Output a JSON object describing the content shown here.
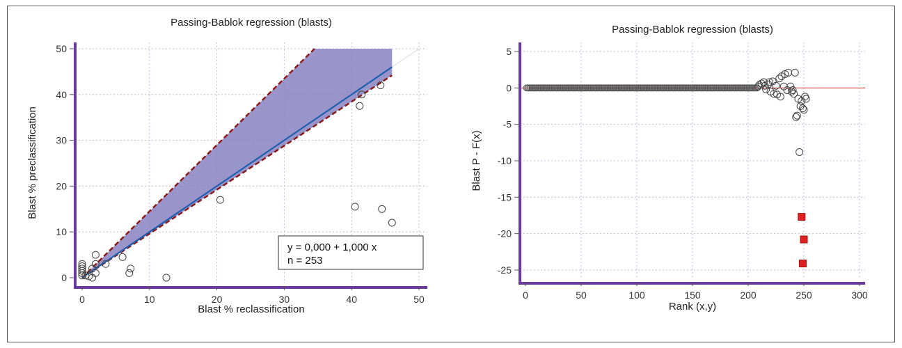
{
  "chart_data": [
    {
      "type": "scatter",
      "title": "Passing-Bablok regression (blasts)",
      "xlabel": "Blast % reclassification",
      "ylabel": "Blast % preclassification",
      "xlim": [
        0,
        50
      ],
      "ylim": [
        0,
        50
      ],
      "xticks": [
        "0",
        "10",
        "20",
        "30",
        "40",
        "50"
      ],
      "yticks": [
        "0",
        "10",
        "20",
        "30",
        "40",
        "50"
      ],
      "grid": true,
      "regression": {
        "intercept": 0.0,
        "slope": 1.0,
        "x_range": [
          0,
          46
        ]
      },
      "confidence_band": {
        "upper": [
          [
            0,
            0
          ],
          [
            34.5,
            50
          ],
          [
            46,
            50
          ]
        ],
        "lower": [
          [
            0,
            0
          ],
          [
            46,
            44.2
          ]
        ]
      },
      "identity_line": true,
      "points": [
        [
          0,
          0.5
        ],
        [
          0,
          1
        ],
        [
          0,
          1.5
        ],
        [
          0,
          2
        ],
        [
          0,
          2.5
        ],
        [
          0,
          3
        ],
        [
          0.5,
          0.5
        ],
        [
          1,
          0.3
        ],
        [
          1.5,
          0
        ],
        [
          2,
          5
        ],
        [
          2,
          3
        ],
        [
          2,
          1
        ],
        [
          1.5,
          2
        ],
        [
          3.5,
          3
        ],
        [
          6,
          4.5
        ],
        [
          7,
          1
        ],
        [
          7.2,
          2
        ],
        [
          12.5,
          0
        ],
        [
          20.5,
          17
        ],
        [
          40.5,
          15.5
        ],
        [
          41.2,
          37.5
        ],
        [
          41.5,
          40
        ],
        [
          44.5,
          15
        ],
        [
          44.3,
          42
        ],
        [
          46,
          12
        ]
      ],
      "legend_box": {
        "equation": "y = 0,000  +  1,000  x",
        "n": "n = 253",
        "placement": "bottom-right"
      }
    },
    {
      "type": "scatter",
      "title": "Passing-Bablok regression (blasts)",
      "xlabel": "Rank  (x,y)",
      "ylabel": "Blast P - F(x)",
      "xlim": [
        0,
        300
      ],
      "ylim": [
        -25,
        5
      ],
      "xticks": [
        "0",
        "50",
        "100",
        "150",
        "200",
        "250",
        "300"
      ],
      "yticks": [
        "5",
        "0",
        "-5",
        "-10",
        "-15",
        "-20",
        "-25"
      ],
      "grid": true,
      "reference_line": 0,
      "zero_run": {
        "from_rank": 1,
        "to_rank": 208,
        "value": 0
      },
      "points": [
        [
          209,
          0.2
        ],
        [
          210,
          0.4
        ],
        [
          212,
          0.6
        ],
        [
          214,
          0.8
        ],
        [
          215,
          0.3
        ],
        [
          216,
          -0.2
        ],
        [
          218,
          0.5
        ],
        [
          219,
          0.8
        ],
        [
          220,
          -0.5
        ],
        [
          222,
          0.9
        ],
        [
          223,
          -0.8
        ],
        [
          225,
          0.3
        ],
        [
          226,
          -0.9
        ],
        [
          228,
          1.3
        ],
        [
          229,
          -1.2
        ],
        [
          230,
          1.6
        ],
        [
          232,
          0.2
        ],
        [
          233,
          1.9
        ],
        [
          235,
          -0.3
        ],
        [
          236,
          2.1
        ],
        [
          238,
          0.2
        ],
        [
          239,
          -0.5
        ],
        [
          240,
          -0.3
        ],
        [
          241,
          -0.8
        ],
        [
          242,
          2.1
        ],
        [
          243,
          -4
        ],
        [
          244,
          -3.8
        ],
        [
          245,
          -1.5
        ],
        [
          246,
          -8.8
        ],
        [
          247,
          -2.5
        ],
        [
          248,
          -1.8
        ],
        [
          249,
          -2.8
        ],
        [
          250,
          -3
        ],
        [
          251,
          -1.2
        ],
        [
          252,
          -1.5
        ]
      ],
      "outliers": [
        [
          248,
          -17.7
        ],
        [
          250,
          -20.8
        ],
        [
          249,
          -24.1
        ]
      ]
    }
  ]
}
